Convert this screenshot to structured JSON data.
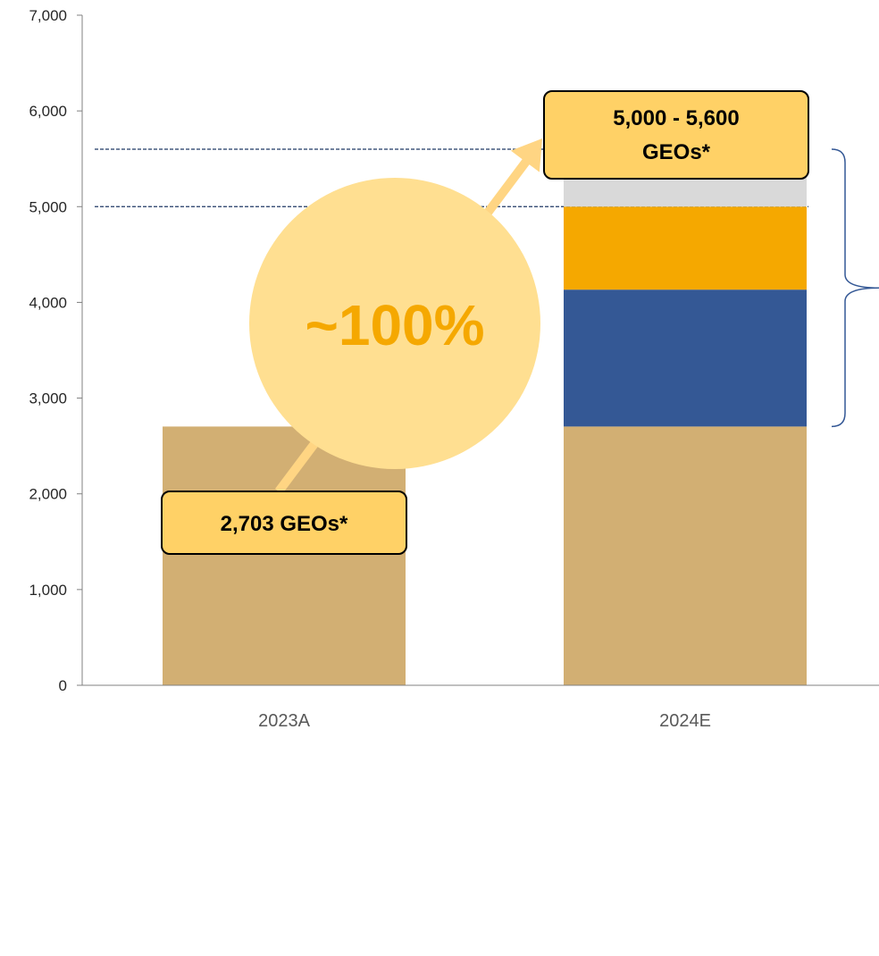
{
  "colors": {
    "base": "#D2AF73",
    "blue": "#345895",
    "orange": "#F5A800",
    "gray": "#D9D9D9",
    "callout_fill": "#FFD166",
    "growth_circle": "#FFDF91",
    "growth_text": "#F5A800",
    "arrow": "#FFD583",
    "dashed_line": "#1F3864",
    "axis": "#808080",
    "brace": "#345895"
  },
  "chart_data": {
    "type": "bar",
    "stacked": true,
    "categories": [
      "2023A",
      "2024E"
    ],
    "series": [
      {
        "color_key": "base",
        "values": [
          2703,
          2703
        ]
      },
      {
        "color_key": "blue",
        "values": [
          0,
          1430
        ]
      },
      {
        "color_key": "orange",
        "values": [
          0,
          867
        ]
      },
      {
        "color_key": "gray",
        "values": [
          0,
          600
        ]
      }
    ],
    "ylim": [
      0,
      7000
    ],
    "yticks": [
      0,
      1000,
      2000,
      3000,
      4000,
      5000,
      6000,
      7000
    ],
    "ytick_labels": [
      "0",
      "1,000",
      "2,000",
      "3,000",
      "4,000",
      "5,000",
      "6,000",
      "7,000"
    ],
    "reference_lines": [
      5000,
      5600
    ],
    "grid": false,
    "xlabel": "",
    "ylabel": "",
    "annotations": {
      "callout_2023": "2,703 GEOs*",
      "callout_2024_line1": "5,000 - 5,600",
      "callout_2024_line2": "GEOs*",
      "growth": "~100%"
    }
  }
}
